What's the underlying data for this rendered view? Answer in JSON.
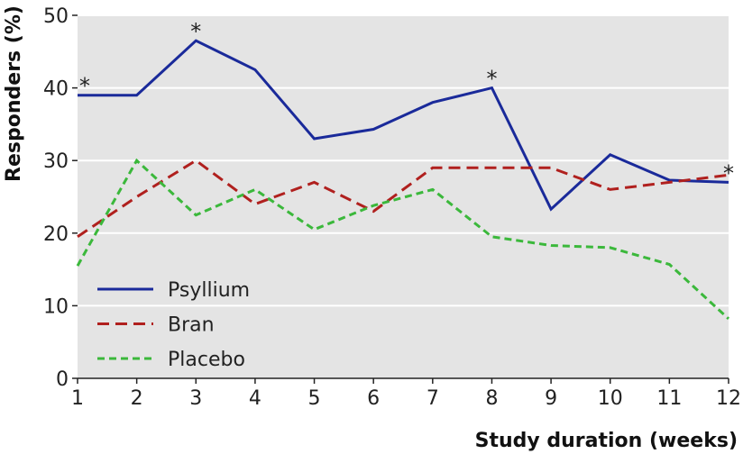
{
  "chart_data": {
    "type": "line",
    "xlabel": "Study duration (weeks)",
    "ylabel": "Responders (%)",
    "x": [
      1,
      2,
      3,
      4,
      5,
      6,
      7,
      8,
      9,
      10,
      11,
      12
    ],
    "xlim": [
      1,
      12
    ],
    "ylim": [
      0,
      50
    ],
    "yticks": [
      0,
      10,
      20,
      30,
      40,
      50
    ],
    "grid": "horizontal",
    "legend_placement": "bottom-left",
    "significance_marker": "*",
    "series": [
      {
        "name": "Psyllium",
        "color": "#1a2a9a",
        "dash": "solid",
        "values": [
          39,
          39,
          46.5,
          42.5,
          33,
          34.3,
          38,
          40,
          23.3,
          30.8,
          27.3,
          27
        ],
        "significant_at": [
          1,
          3,
          8,
          12
        ]
      },
      {
        "name": "Bran",
        "color": "#b0201e",
        "dash": "dashed",
        "values": [
          19.5,
          25,
          30,
          24,
          27,
          23,
          29,
          29,
          29,
          26,
          27,
          28
        ]
      },
      {
        "name": "Placebo",
        "color": "#3bb83b",
        "dash": "dashed",
        "values": [
          15.5,
          30,
          22.5,
          26,
          20.5,
          23.8,
          26,
          19.5,
          18.3,
          18,
          15.7,
          8.2
        ]
      }
    ]
  }
}
